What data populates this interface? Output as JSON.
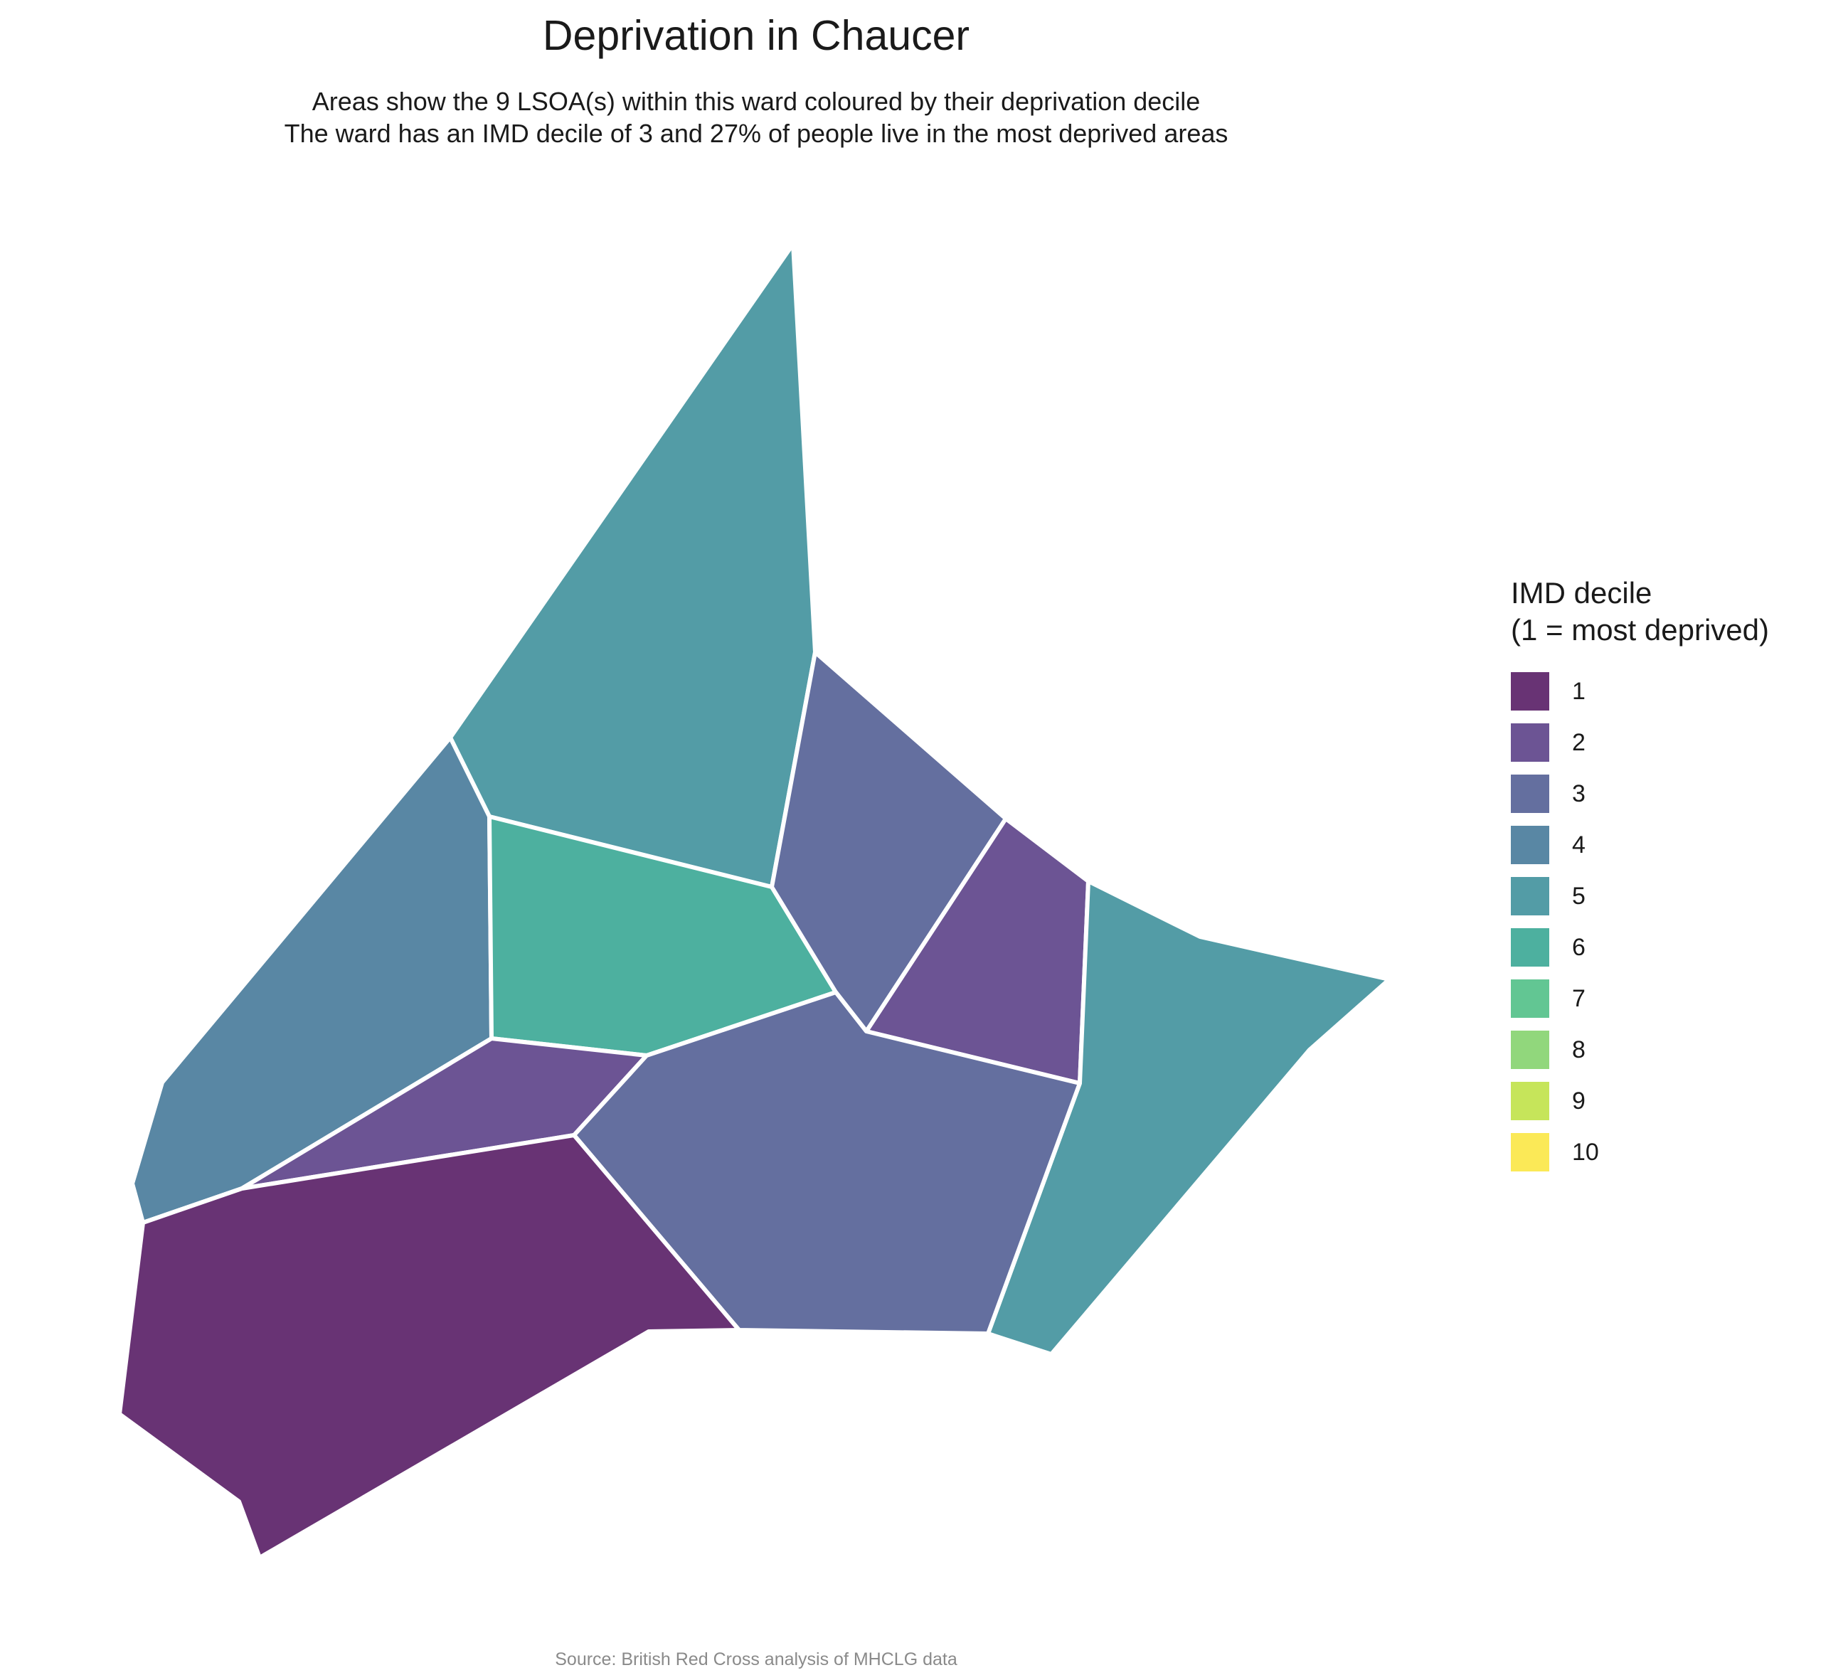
{
  "title": "Deprivation in Chaucer",
  "subtitle_line1": "Areas show the 9 LSOA(s) within this ward coloured by their deprivation decile",
  "subtitle_line2": "The ward has an IMD decile of 3 and 27% of people live in the most deprived areas",
  "caption": "Source: British Red Cross analysis of MHCLG data",
  "legend": {
    "title_line1": "IMD decile",
    "title_line2": "(1 = most deprived)",
    "items": [
      {
        "label": "1",
        "color": "#683374"
      },
      {
        "label": "2",
        "color": "#6c5494"
      },
      {
        "label": "3",
        "color": "#646f9f"
      },
      {
        "label": "4",
        "color": "#5987a4"
      },
      {
        "label": "5",
        "color": "#539ca6"
      },
      {
        "label": "6",
        "color": "#4db09f"
      },
      {
        "label": "7",
        "color": "#62c693"
      },
      {
        "label": "8",
        "color": "#91d77c"
      },
      {
        "label": "9",
        "color": "#c6e55a"
      },
      {
        "label": "10",
        "color": "#fbe957"
      }
    ]
  },
  "areas": [
    {
      "id": "north",
      "decile": 5
    },
    {
      "id": "west",
      "decile": 4
    },
    {
      "id": "central",
      "decile": 6
    },
    {
      "id": "north-east",
      "decile": 3
    },
    {
      "id": "east",
      "decile": 2
    },
    {
      "id": "far-east",
      "decile": 5
    },
    {
      "id": "central-west",
      "decile": 2
    },
    {
      "id": "south",
      "decile": 3
    },
    {
      "id": "south-west",
      "decile": 1
    }
  ]
}
